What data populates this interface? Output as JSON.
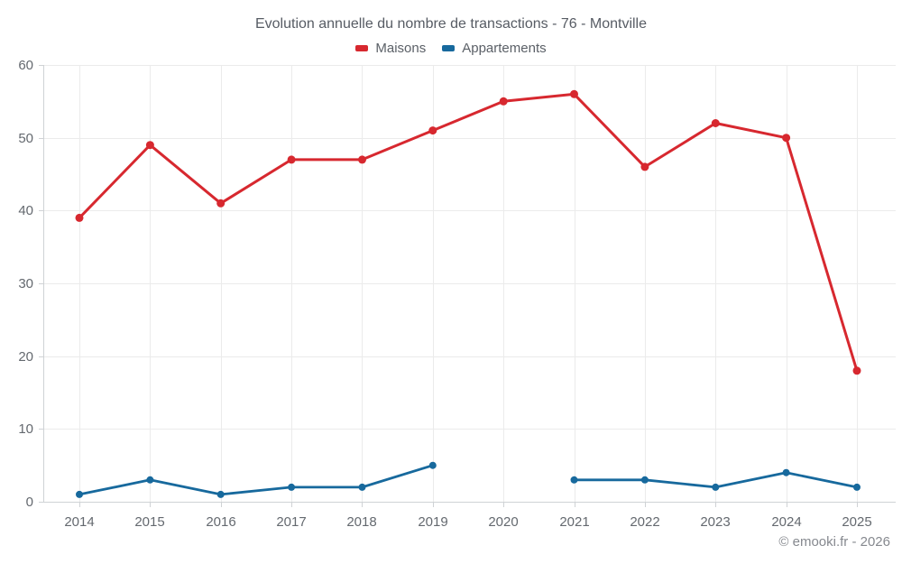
{
  "chart": {
    "title": "Evolution annuelle du nombre de transactions - 76 - Montville",
    "footer": "© emooki.fr - 2026"
  },
  "chart_data": {
    "type": "line",
    "title": "Evolution annuelle du nombre de transactions - 76 - Montville",
    "categories": [
      "2014",
      "2015",
      "2016",
      "2017",
      "2018",
      "2019",
      "2020",
      "2021",
      "2022",
      "2023",
      "2024",
      "2025"
    ],
    "series": [
      {
        "name": "Maisons",
        "color": "#d7282f",
        "values": [
          39,
          49,
          41,
          47,
          47,
          51,
          55,
          56,
          46,
          52,
          50,
          18
        ]
      },
      {
        "name": "Appartements",
        "color": "#17699d",
        "values": [
          1,
          3,
          1,
          2,
          2,
          5,
          null,
          3,
          3,
          2,
          4,
          2
        ]
      }
    ],
    "xlabel": "",
    "ylabel": "",
    "ylim": [
      0,
      60
    ],
    "ytick_step": 10,
    "grid": true,
    "legend_position": "top",
    "colors": {
      "grid_line": "#ebebeb",
      "axis_line": "#cfd2d5",
      "tick_label": "#64696f"
    }
  }
}
